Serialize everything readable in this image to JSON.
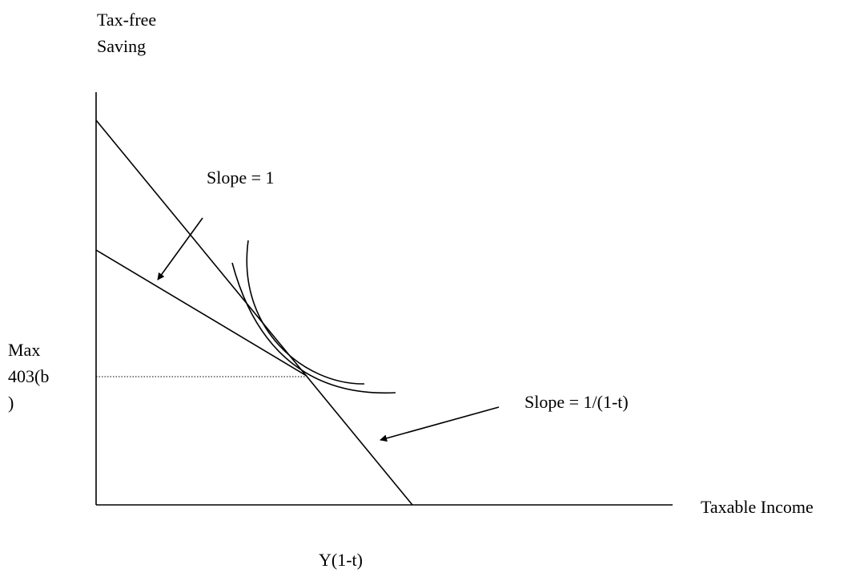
{
  "labels": {
    "y_axis": [
      "Tax-free",
      "Saving"
    ],
    "x_axis": "Taxable Income",
    "max_403b": [
      "Max",
      "403(b",
      ")"
    ],
    "x_intercept": "Y(1-t)",
    "slope_one": "Slope = 1",
    "slope_tax": "Slope = 1/(1-t)"
  },
  "colors": {
    "ink": "#000000",
    "background": "#ffffff"
  }
}
